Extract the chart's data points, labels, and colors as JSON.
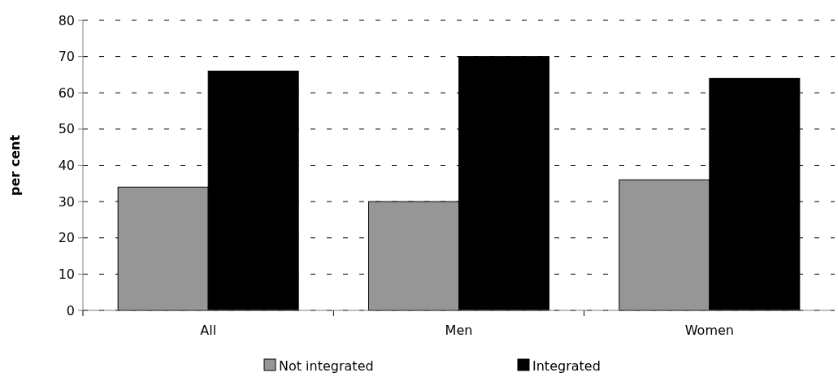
{
  "chart_data": {
    "type": "bar",
    "ylabel": "per cent",
    "categories": [
      "All",
      "Men",
      "Women"
    ],
    "series": [
      {
        "name": "Not integrated",
        "color": "#969696",
        "values": [
          34,
          30,
          36
        ]
      },
      {
        "name": "Integrated",
        "color": "#000000",
        "values": [
          66,
          70,
          64
        ]
      }
    ],
    "ylim": [
      0,
      80
    ],
    "yticks": [
      0,
      10,
      20,
      30,
      40,
      50,
      60,
      70,
      80
    ],
    "grid": "y",
    "legend": "bottom"
  }
}
